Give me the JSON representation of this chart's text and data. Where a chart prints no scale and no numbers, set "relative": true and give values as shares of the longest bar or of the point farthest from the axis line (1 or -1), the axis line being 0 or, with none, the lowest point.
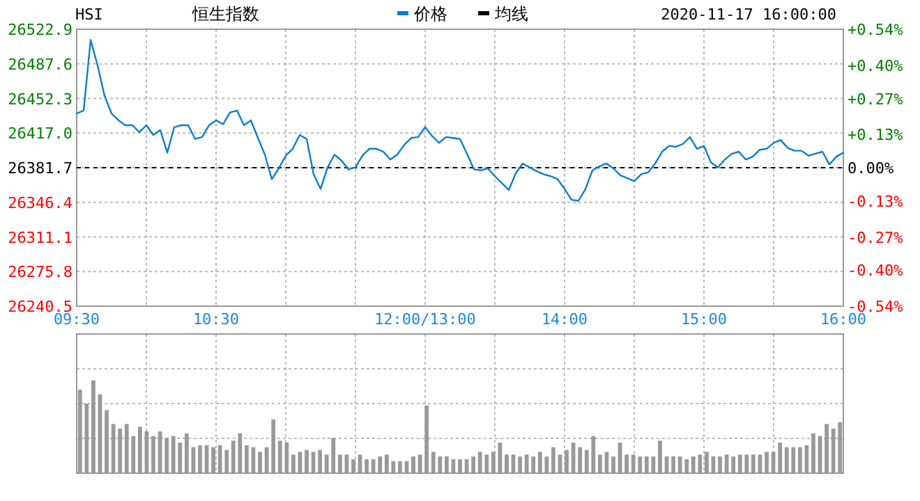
{
  "chart_data": [
    {
      "type": "line",
      "title": "恒生指数",
      "annotations": [
        "HSI",
        "2020-11-17 16:00:00"
      ],
      "categories": [
        "09:30",
        null,
        null,
        null,
        null,
        null,
        null,
        null,
        null,
        null,
        null,
        null,
        null,
        null,
        null,
        null,
        null,
        null,
        null,
        null,
        "10:30",
        null,
        null,
        null,
        null,
        null,
        null,
        null,
        null,
        null,
        null,
        null,
        null,
        null,
        null,
        null,
        null,
        null,
        null,
        null,
        null,
        null,
        null,
        null,
        null,
        null,
        null,
        null,
        null,
        null,
        "12:00/13:00",
        null,
        null,
        null,
        null,
        null,
        null,
        null,
        null,
        null,
        null,
        null,
        null,
        null,
        null,
        null,
        null,
        null,
        null,
        null,
        "14:00",
        null,
        null,
        null,
        null,
        null,
        null,
        null,
        null,
        null,
        null,
        null,
        null,
        null,
        null,
        null,
        null,
        null,
        null,
        null,
        "15:00",
        null,
        null,
        null,
        null,
        null,
        null,
        null,
        null,
        null,
        null,
        null,
        null,
        null,
        null,
        null,
        null,
        null,
        null,
        null,
        "16:00"
      ],
      "series": [
        {
          "name": "价格",
          "color": "#0a7fcc",
          "values": [
            26437,
            26440,
            26512,
            26486,
            26455,
            26437,
            26430,
            26425,
            26425,
            26418,
            26425,
            26415,
            26420,
            26397,
            26423,
            26425,
            26425,
            26411,
            26413,
            26425,
            26430,
            26426,
            26438,
            26440,
            26425,
            26430,
            26412,
            26395,
            26370,
            26381,
            26394,
            26401,
            26415,
            26411,
            26375,
            26360,
            26382,
            26395,
            26389,
            26380,
            26382,
            26394,
            26401,
            26401,
            26398,
            26390,
            26395,
            26405,
            26412,
            26413,
            26423,
            26414,
            26407,
            26413,
            26412,
            26411,
            26396,
            26380,
            26379,
            26381,
            26373,
            26366,
            26359,
            26376,
            26386,
            26382,
            26378,
            26375,
            26373,
            26370,
            26360,
            26349,
            26348,
            26360,
            26379,
            26383,
            26386,
            26381,
            26374,
            26371,
            26368,
            26375,
            26377,
            26386,
            26398,
            26404,
            26403,
            26406,
            26413,
            26401,
            26404,
            26387,
            26382,
            26390,
            26396,
            26398,
            26390,
            26393,
            26400,
            26401,
            26407,
            26410,
            26402,
            26399,
            26399,
            26394,
            26396,
            26398,
            26385,
            26393,
            26397
          ]
        },
        {
          "name": "均线",
          "color": "#000000",
          "values": [
            null,
            null,
            null,
            null,
            null,
            null,
            null,
            null,
            null,
            null,
            null,
            null,
            null,
            null,
            null,
            null,
            null,
            null,
            null,
            null,
            null,
            null,
            null,
            null,
            null,
            null,
            null,
            null,
            null,
            null,
            null,
            null,
            null,
            null,
            null,
            null,
            null,
            null,
            null,
            null,
            null,
            null,
            null,
            null,
            null,
            null,
            null,
            null,
            null,
            null,
            null,
            null,
            null,
            null,
            null,
            null,
            null,
            null,
            null,
            null,
            null,
            null,
            null,
            null,
            null,
            null,
            null,
            null,
            null,
            null,
            null,
            null,
            null,
            null,
            null,
            null,
            null,
            null,
            null,
            null,
            null,
            null,
            null,
            null,
            null,
            null,
            null,
            null,
            null,
            null,
            null,
            null,
            null,
            null,
            null,
            null,
            null,
            null,
            null,
            null,
            null,
            null,
            null,
            null,
            null,
            null,
            null,
            null,
            null,
            null,
            null
          ]
        }
      ],
      "ylim": [
        26240.5,
        26522.9
      ],
      "yticks": [
        26240.5,
        26275.8,
        26311.1,
        26346.4,
        26381.7,
        {
          "value": 26417,
          "label": "26417.0"
        },
        26452.3,
        26487.6,
        26522.9
      ],
      "y2lim": [
        -0.54,
        0.54
      ],
      "y2ticks": [
        {
          "value": -0.54,
          "label": "-0.54%"
        },
        {
          "value": -0.4,
          "label": "-0.40%"
        },
        {
          "value": -0.27,
          "label": "-0.27%"
        },
        {
          "value": -0.13,
          "label": "-0.13%"
        },
        {
          "value": 0,
          "label": "0.00%"
        },
        {
          "value": 0.13,
          "label": "+0.13%"
        },
        {
          "value": 0.27,
          "label": "+0.27%"
        },
        {
          "value": 0.4,
          "label": "+0.40%"
        },
        {
          "value": 0.54,
          "label": "+0.54%"
        }
      ],
      "ref_lines": [
        {
          "axis": "y",
          "value": 26381.7,
          "color": "#000000",
          "line_style": "dashed"
        }
      ],
      "grid": true,
      "legend": "top"
    },
    {
      "type": "bar",
      "relative": true,
      "grid": true,
      "color": "#999999",
      "categories": [
        null,
        null,
        null,
        null,
        null,
        null,
        null,
        null,
        null,
        null,
        null,
        null,
        null,
        null,
        null,
        null,
        null,
        null,
        null,
        null,
        null,
        null,
        null,
        null,
        null,
        null,
        null,
        null,
        null,
        null,
        null,
        null,
        null,
        null,
        null,
        null,
        null,
        null,
        null,
        null,
        null,
        null,
        null,
        null,
        null,
        null,
        null,
        null,
        null,
        null,
        null,
        null,
        null,
        null,
        null,
        null,
        null,
        null,
        null,
        null,
        null,
        null,
        null,
        null,
        null,
        null,
        null,
        null,
        null,
        null,
        null,
        null,
        null,
        null,
        null,
        null,
        null,
        null,
        null,
        null,
        null,
        null,
        null,
        null,
        null,
        null,
        null,
        null,
        null,
        null,
        null,
        null,
        null,
        null,
        null,
        null,
        null,
        null,
        null,
        null,
        null,
        null,
        null,
        null,
        null,
        null,
        null,
        null,
        null,
        null,
        null,
        null,
        null,
        null,
        null
      ],
      "values": [
        0.9,
        0.75,
        1,
        0.85,
        0.68,
        0.53,
        0.48,
        0.53,
        0.4,
        0.5,
        0.45,
        0.4,
        0.45,
        0.38,
        0.4,
        0.33,
        0.43,
        0.28,
        0.3,
        0.3,
        0.28,
        0.3,
        0.25,
        0.35,
        0.43,
        0.3,
        0.28,
        0.23,
        0.28,
        0.58,
        0.35,
        0.33,
        0.2,
        0.23,
        0.25,
        0.23,
        0.25,
        0.2,
        0.38,
        0.2,
        0.2,
        0.15,
        0.2,
        0.15,
        0.15,
        0.18,
        0.2,
        0.13,
        0.13,
        0.13,
        0.18,
        0.2,
        0.73,
        0.23,
        0.18,
        0.18,
        0.15,
        0.15,
        0.15,
        0.18,
        0.23,
        0.2,
        0.23,
        0.33,
        0.2,
        0.2,
        0.18,
        0.2,
        0.18,
        0.23,
        0.18,
        0.28,
        0.2,
        0.25,
        0.33,
        0.28,
        0.25,
        0.4,
        0.2,
        0.23,
        0.18,
        0.33,
        0.2,
        0.2,
        0.18,
        0.18,
        0.18,
        0.35,
        0.18,
        0.18,
        0.18,
        0.15,
        0.18,
        0.2,
        0.23,
        0.18,
        0.18,
        0.2,
        0.18,
        0.2,
        0.2,
        0.2,
        0.2,
        0.23,
        0.23,
        0.33,
        0.28,
        0.28,
        0.28,
        0.3,
        0.43,
        0.4,
        0.53,
        0.48,
        0.55
      ]
    }
  ]
}
